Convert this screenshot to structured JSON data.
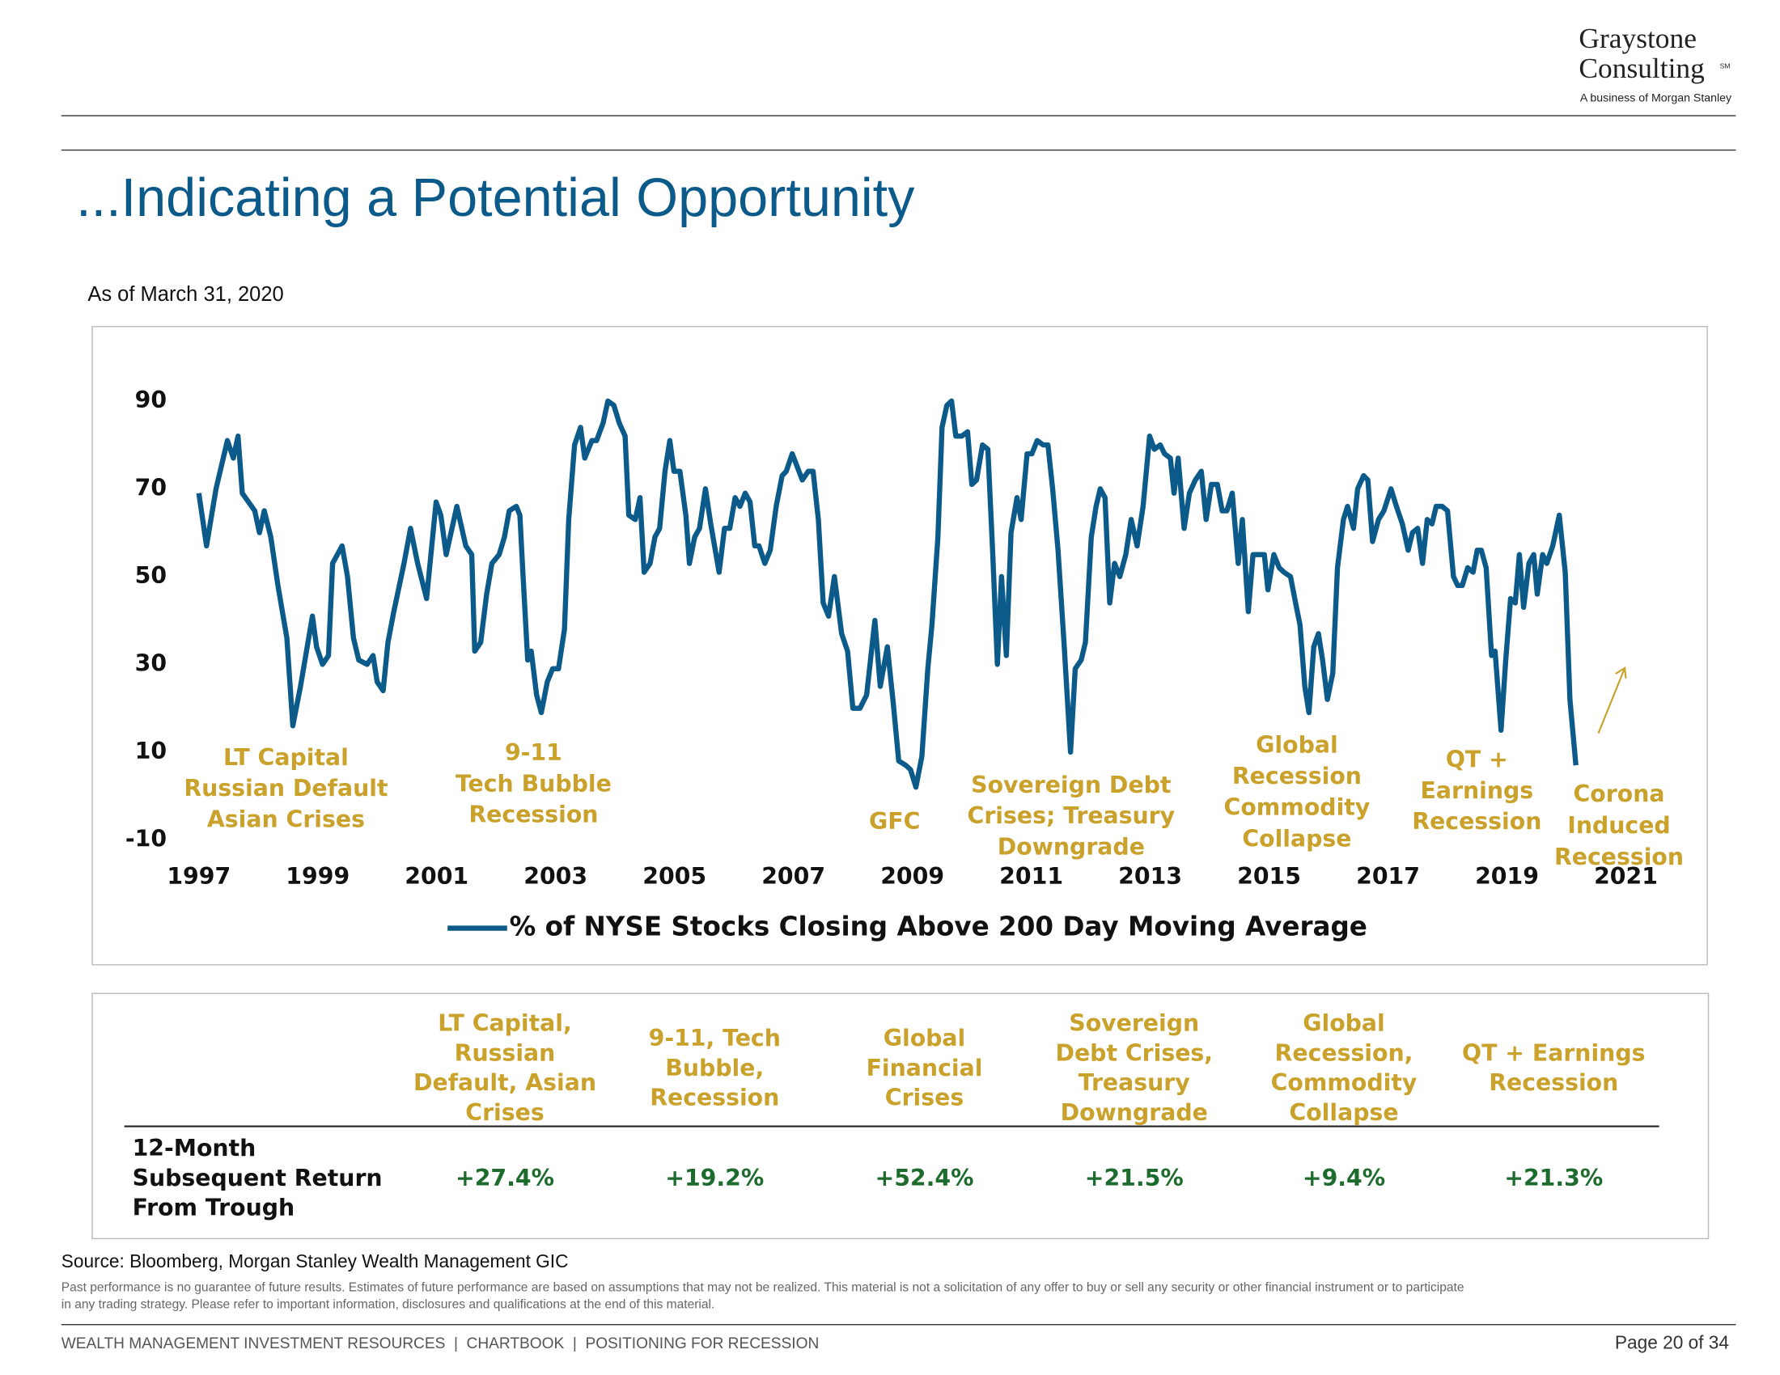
{
  "header": {
    "logo_line1": "Graystone",
    "logo_line2": "Consulting",
    "logo_mark": "SM",
    "logo_tagline": "A business of Morgan Stanley"
  },
  "page_title": "...Indicating a Potential Opportunity",
  "as_of": "As of March 31, 2020",
  "chart_data": {
    "type": "line",
    "x": [
      1997.0,
      1997.13,
      1997.29,
      1997.48,
      1997.58,
      1997.66,
      1997.73,
      1997.94,
      1998.02,
      1998.1,
      1998.21,
      1998.33,
      1998.48,
      1998.58,
      1998.71,
      1998.91,
      1998.98,
      1999.08,
      1999.18,
      1999.25,
      1999.41,
      1999.5,
      1999.6,
      1999.69,
      1999.83,
      1999.93,
      2000.0,
      2000.1,
      2000.18,
      2000.28,
      2000.45,
      2000.56,
      2000.68,
      2000.83,
      2000.99,
      2001.07,
      2001.16,
      2001.34,
      2001.49,
      2001.59,
      2001.64,
      2001.74,
      2001.84,
      2001.93,
      2002.05,
      2002.14,
      2002.22,
      2002.34,
      2002.4,
      2002.45,
      2002.53,
      2002.59,
      2002.68,
      2002.76,
      2002.86,
      2002.95,
      2003.05,
      2003.15,
      2003.22,
      2003.32,
      2003.42,
      2003.49,
      2003.61,
      2003.69,
      2003.8,
      2003.88,
      2003.98,
      2004.07,
      2004.17,
      2004.23,
      2004.34,
      2004.42,
      2004.49,
      2004.59,
      2004.67,
      2004.75,
      2004.84,
      2004.92,
      2004.99,
      2005.09,
      2005.19,
      2005.25,
      2005.34,
      2005.42,
      2005.52,
      2005.61,
      2005.75,
      2005.84,
      2005.93,
      2006.02,
      2006.1,
      2006.19,
      2006.27,
      2006.35,
      2006.42,
      2006.52,
      2006.61,
      2006.71,
      2006.81,
      2006.88,
      2006.98,
      2007.15,
      2007.25,
      2007.33,
      2007.42,
      2007.5,
      2007.59,
      2007.69,
      2007.81,
      2007.91,
      2008.0,
      2008.12,
      2008.23,
      2008.37,
      2008.46,
      2008.58,
      2008.68,
      2008.77,
      2008.89,
      2008.97,
      2009.06,
      2009.16,
      2009.26,
      2009.33,
      2009.43,
      2009.5,
      2009.58,
      2009.66,
      2009.73,
      2009.83,
      2009.93,
      2010.0,
      2010.08,
      2010.18,
      2010.27,
      2010.35,
      2010.43,
      2010.5,
      2010.58,
      2010.66,
      2010.76,
      2010.83,
      2010.93,
      2011.01,
      2011.1,
      2011.2,
      2011.28,
      2011.36,
      2011.45,
      2011.55,
      2011.66,
      2011.74,
      2011.84,
      2011.91,
      2012.01,
      2012.09,
      2012.16,
      2012.24,
      2012.32,
      2012.4,
      2012.49,
      2012.59,
      2012.68,
      2012.78,
      2012.88,
      2012.99,
      2013.07,
      2013.17,
      2013.24,
      2013.34,
      2013.4,
      2013.47,
      2013.57,
      2013.66,
      2013.76,
      2013.86,
      2013.94,
      2014.03,
      2014.13,
      2014.21,
      2014.29,
      2014.38,
      2014.48,
      2014.55,
      2014.65,
      2014.73,
      2014.82,
      2014.92,
      2014.98,
      2015.08,
      2015.17,
      2015.25,
      2015.36,
      2015.46,
      2015.52,
      2015.6,
      2015.67,
      2015.75,
      2015.83,
      2015.9,
      2015.98,
      2016.07,
      2016.15,
      2016.25,
      2016.32,
      2016.42,
      2016.49,
      2016.59,
      2016.66,
      2016.74,
      2016.84,
      2016.93,
      2017.05,
      2017.14,
      2017.24,
      2017.34,
      2017.41,
      2017.5,
      2017.58,
      2017.66,
      2017.74,
      2017.81,
      2017.91,
      2018.0,
      2018.1,
      2018.17,
      2018.25,
      2018.34,
      2018.43,
      2018.5,
      2018.57,
      2018.65,
      2018.74,
      2018.8,
      2018.9,
      2018.98,
      2019.06,
      2019.14,
      2019.21,
      2019.28,
      2019.37,
      2019.45,
      2019.51,
      2019.6,
      2019.67,
      2019.77,
      2019.88,
      2019.98,
      2020.06,
      2020.16
    ],
    "series": [
      {
        "name": "% of NYSE Stocks Closing Above 200 Day Moving Average",
        "color": "#0b5a8a",
        "values": [
          69,
          57,
          70,
          81,
          77,
          82,
          69,
          65,
          60,
          65,
          59,
          48,
          36,
          16,
          25,
          41,
          34,
          30,
          32,
          53,
          57,
          50,
          36,
          31,
          30,
          32,
          26,
          24,
          35,
          42,
          53,
          61,
          53,
          45,
          67,
          64,
          55,
          66,
          57,
          55,
          33,
          35,
          46,
          53,
          55,
          59,
          65,
          66,
          64,
          51,
          31,
          33,
          23,
          19,
          26,
          29,
          29,
          38,
          63,
          80,
          84,
          77,
          81,
          81,
          85,
          90,
          89,
          85,
          82,
          64,
          63,
          68,
          51,
          53,
          59,
          61,
          74,
          81,
          74,
          74,
          64,
          53,
          59,
          61,
          70,
          62,
          51,
          61,
          61,
          68,
          66,
          69,
          67,
          57,
          57,
          53,
          56,
          66,
          73,
          74,
          78,
          72,
          74,
          74,
          63,
          44,
          41,
          50,
          37,
          33,
          20,
          20,
          23,
          40,
          25,
          34,
          21,
          8,
          7,
          6,
          2,
          9,
          29,
          39,
          59,
          84,
          89,
          90,
          82,
          82,
          83,
          71,
          72,
          80,
          79,
          56,
          30,
          50,
          32,
          60,
          68,
          63,
          78,
          78,
          81,
          80,
          80,
          70,
          56,
          35,
          10,
          29,
          31,
          35,
          59,
          66,
          70,
          68,
          44,
          53,
          50,
          55,
          63,
          57,
          66,
          82,
          79,
          80,
          78,
          77,
          69,
          77,
          61,
          69,
          72,
          74,
          63,
          71,
          71,
          65,
          65,
          69,
          53,
          63,
          42,
          55,
          55,
          55,
          47,
          55,
          52,
          51,
          50,
          43,
          39,
          25,
          19,
          34,
          37,
          31,
          22,
          28,
          52,
          63,
          66,
          61,
          70,
          73,
          72,
          58,
          63,
          65,
          70,
          66,
          62,
          56,
          60,
          61,
          53,
          63,
          62,
          66,
          66,
          65,
          50,
          48,
          48,
          52,
          51,
          56,
          56,
          52,
          32,
          33,
          15,
          31,
          45,
          44,
          55,
          43,
          53,
          55,
          46,
          55,
          53,
          57,
          64,
          51,
          22,
          7
        ]
      }
    ],
    "xlim": [
      1997,
      2021
    ],
    "xticks": [
      1997,
      1999,
      2001,
      2003,
      2005,
      2007,
      2009,
      2011,
      2013,
      2015,
      2017,
      2019,
      2021
    ],
    "ylim": [
      -10,
      90
    ],
    "yticks": [
      90,
      70,
      50,
      30,
      10,
      -10
    ],
    "annotations": [
      {
        "lines": [
          "LT Capital",
          "Russian Default",
          "Asian Crises"
        ]
      },
      {
        "lines": [
          "9-11",
          "Tech Bubble",
          "Recession"
        ]
      },
      {
        "lines": [
          "GFC"
        ]
      },
      {
        "lines": [
          "Sovereign Debt",
          "Crises; Treasury",
          "Downgrade"
        ]
      },
      {
        "lines": [
          "Global",
          "Recession",
          "Commodity",
          "Collapse"
        ]
      },
      {
        "lines": [
          "QT +",
          "Earnings",
          "Recession"
        ]
      },
      {
        "lines": [
          "Corona",
          "Induced",
          "Recession"
        ]
      }
    ]
  },
  "table": {
    "columns": [
      [
        "LT Capital,",
        "Russian",
        "Default, Asian",
        "Crises"
      ],
      [
        "9-11, Tech",
        "Bubble,",
        "Recession"
      ],
      [
        "Global",
        "Financial",
        "Crises"
      ],
      [
        "Sovereign",
        "Debt Crises,",
        "Treasury",
        "Downgrade"
      ],
      [
        "Global",
        "Recession,",
        "Commodity",
        "Collapse"
      ],
      [
        "QT + Earnings",
        "Recession"
      ]
    ],
    "row_label": [
      "12-Month",
      "Subsequent Return",
      "From Trough"
    ],
    "values": [
      "+27.4%",
      "+19.2%",
      "+52.4%",
      "+21.5%",
      "+9.4%",
      "+21.3%"
    ]
  },
  "source": "Source: Bloomberg, Morgan Stanley Wealth Management GIC",
  "disclaimer": [
    "Past performance is no guarantee of future results. Estimates of future performance are based on assumptions that may not be realized. This material is not a solicitation of any offer to buy or sell any security or other financial instrument or to participate",
    "in any trading strategy. Please refer to important information, disclosures and qualifications at the end of this material."
  ],
  "footer": {
    "left": "WEALTH MANAGEMENT INVESTMENT RESOURCES  |  CHARTBOOK  |  POSITIONING FOR RECESSION",
    "page": "Page 20 of 34"
  }
}
